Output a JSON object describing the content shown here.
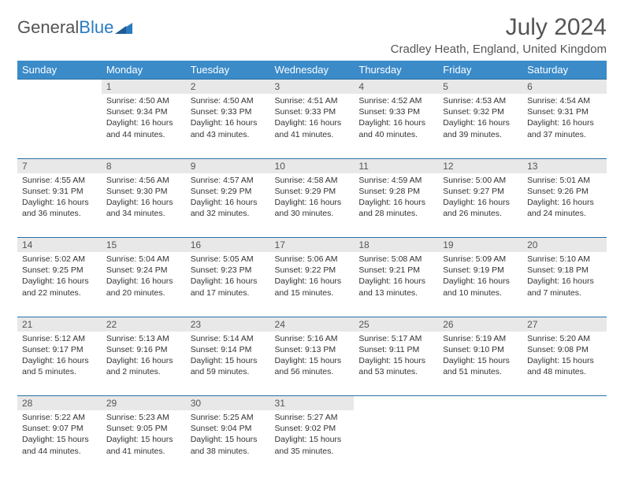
{
  "brand": {
    "part1": "General",
    "part2": "Blue"
  },
  "title": "July 2024",
  "location": "Cradley Heath, England, United Kingdom",
  "colors": {
    "header_bg": "#3b8bc9",
    "header_text": "#ffffff",
    "daynum_bg": "#e8e8e8",
    "border": "#2b6fa3",
    "logo_blue": "#2b7bbf",
    "text": "#333333"
  },
  "day_headers": [
    "Sunday",
    "Monday",
    "Tuesday",
    "Wednesday",
    "Thursday",
    "Friday",
    "Saturday"
  ],
  "weeks": [
    {
      "nums": [
        "",
        "1",
        "2",
        "3",
        "4",
        "5",
        "6"
      ],
      "cells": [
        null,
        {
          "sunrise": "Sunrise: 4:50 AM",
          "sunset": "Sunset: 9:34 PM",
          "day1": "Daylight: 16 hours",
          "day2": "and 44 minutes."
        },
        {
          "sunrise": "Sunrise: 4:50 AM",
          "sunset": "Sunset: 9:33 PM",
          "day1": "Daylight: 16 hours",
          "day2": "and 43 minutes."
        },
        {
          "sunrise": "Sunrise: 4:51 AM",
          "sunset": "Sunset: 9:33 PM",
          "day1": "Daylight: 16 hours",
          "day2": "and 41 minutes."
        },
        {
          "sunrise": "Sunrise: 4:52 AM",
          "sunset": "Sunset: 9:33 PM",
          "day1": "Daylight: 16 hours",
          "day2": "and 40 minutes."
        },
        {
          "sunrise": "Sunrise: 4:53 AM",
          "sunset": "Sunset: 9:32 PM",
          "day1": "Daylight: 16 hours",
          "day2": "and 39 minutes."
        },
        {
          "sunrise": "Sunrise: 4:54 AM",
          "sunset": "Sunset: 9:31 PM",
          "day1": "Daylight: 16 hours",
          "day2": "and 37 minutes."
        }
      ]
    },
    {
      "nums": [
        "7",
        "8",
        "9",
        "10",
        "11",
        "12",
        "13"
      ],
      "cells": [
        {
          "sunrise": "Sunrise: 4:55 AM",
          "sunset": "Sunset: 9:31 PM",
          "day1": "Daylight: 16 hours",
          "day2": "and 36 minutes."
        },
        {
          "sunrise": "Sunrise: 4:56 AM",
          "sunset": "Sunset: 9:30 PM",
          "day1": "Daylight: 16 hours",
          "day2": "and 34 minutes."
        },
        {
          "sunrise": "Sunrise: 4:57 AM",
          "sunset": "Sunset: 9:29 PM",
          "day1": "Daylight: 16 hours",
          "day2": "and 32 minutes."
        },
        {
          "sunrise": "Sunrise: 4:58 AM",
          "sunset": "Sunset: 9:29 PM",
          "day1": "Daylight: 16 hours",
          "day2": "and 30 minutes."
        },
        {
          "sunrise": "Sunrise: 4:59 AM",
          "sunset": "Sunset: 9:28 PM",
          "day1": "Daylight: 16 hours",
          "day2": "and 28 minutes."
        },
        {
          "sunrise": "Sunrise: 5:00 AM",
          "sunset": "Sunset: 9:27 PM",
          "day1": "Daylight: 16 hours",
          "day2": "and 26 minutes."
        },
        {
          "sunrise": "Sunrise: 5:01 AM",
          "sunset": "Sunset: 9:26 PM",
          "day1": "Daylight: 16 hours",
          "day2": "and 24 minutes."
        }
      ]
    },
    {
      "nums": [
        "14",
        "15",
        "16",
        "17",
        "18",
        "19",
        "20"
      ],
      "cells": [
        {
          "sunrise": "Sunrise: 5:02 AM",
          "sunset": "Sunset: 9:25 PM",
          "day1": "Daylight: 16 hours",
          "day2": "and 22 minutes."
        },
        {
          "sunrise": "Sunrise: 5:04 AM",
          "sunset": "Sunset: 9:24 PM",
          "day1": "Daylight: 16 hours",
          "day2": "and 20 minutes."
        },
        {
          "sunrise": "Sunrise: 5:05 AM",
          "sunset": "Sunset: 9:23 PM",
          "day1": "Daylight: 16 hours",
          "day2": "and 17 minutes."
        },
        {
          "sunrise": "Sunrise: 5:06 AM",
          "sunset": "Sunset: 9:22 PM",
          "day1": "Daylight: 16 hours",
          "day2": "and 15 minutes."
        },
        {
          "sunrise": "Sunrise: 5:08 AM",
          "sunset": "Sunset: 9:21 PM",
          "day1": "Daylight: 16 hours",
          "day2": "and 13 minutes."
        },
        {
          "sunrise": "Sunrise: 5:09 AM",
          "sunset": "Sunset: 9:19 PM",
          "day1": "Daylight: 16 hours",
          "day2": "and 10 minutes."
        },
        {
          "sunrise": "Sunrise: 5:10 AM",
          "sunset": "Sunset: 9:18 PM",
          "day1": "Daylight: 16 hours",
          "day2": "and 7 minutes."
        }
      ]
    },
    {
      "nums": [
        "21",
        "22",
        "23",
        "24",
        "25",
        "26",
        "27"
      ],
      "cells": [
        {
          "sunrise": "Sunrise: 5:12 AM",
          "sunset": "Sunset: 9:17 PM",
          "day1": "Daylight: 16 hours",
          "day2": "and 5 minutes."
        },
        {
          "sunrise": "Sunrise: 5:13 AM",
          "sunset": "Sunset: 9:16 PM",
          "day1": "Daylight: 16 hours",
          "day2": "and 2 minutes."
        },
        {
          "sunrise": "Sunrise: 5:14 AM",
          "sunset": "Sunset: 9:14 PM",
          "day1": "Daylight: 15 hours",
          "day2": "and 59 minutes."
        },
        {
          "sunrise": "Sunrise: 5:16 AM",
          "sunset": "Sunset: 9:13 PM",
          "day1": "Daylight: 15 hours",
          "day2": "and 56 minutes."
        },
        {
          "sunrise": "Sunrise: 5:17 AM",
          "sunset": "Sunset: 9:11 PM",
          "day1": "Daylight: 15 hours",
          "day2": "and 53 minutes."
        },
        {
          "sunrise": "Sunrise: 5:19 AM",
          "sunset": "Sunset: 9:10 PM",
          "day1": "Daylight: 15 hours",
          "day2": "and 51 minutes."
        },
        {
          "sunrise": "Sunrise: 5:20 AM",
          "sunset": "Sunset: 9:08 PM",
          "day1": "Daylight: 15 hours",
          "day2": "and 48 minutes."
        }
      ]
    },
    {
      "nums": [
        "28",
        "29",
        "30",
        "31",
        "",
        "",
        ""
      ],
      "cells": [
        {
          "sunrise": "Sunrise: 5:22 AM",
          "sunset": "Sunset: 9:07 PM",
          "day1": "Daylight: 15 hours",
          "day2": "and 44 minutes."
        },
        {
          "sunrise": "Sunrise: 5:23 AM",
          "sunset": "Sunset: 9:05 PM",
          "day1": "Daylight: 15 hours",
          "day2": "and 41 minutes."
        },
        {
          "sunrise": "Sunrise: 5:25 AM",
          "sunset": "Sunset: 9:04 PM",
          "day1": "Daylight: 15 hours",
          "day2": "and 38 minutes."
        },
        {
          "sunrise": "Sunrise: 5:27 AM",
          "sunset": "Sunset: 9:02 PM",
          "day1": "Daylight: 15 hours",
          "day2": "and 35 minutes."
        },
        null,
        null,
        null
      ]
    }
  ]
}
